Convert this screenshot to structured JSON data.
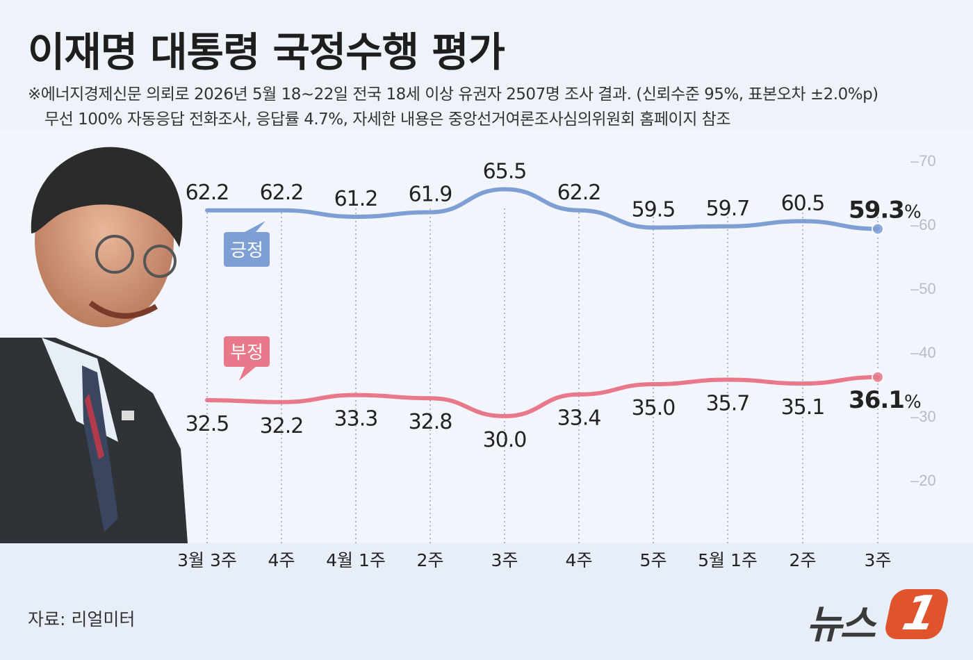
{
  "title": "이재명 대통령 국정수행 평가",
  "notes": [
    "※에너지경제신문 의뢰로 2026년 5월 18~22일 전국 18세 이상 유권자 2507명 조사 결과. (신뢰수준 95%, 표본오차 ±2.0%p)",
    "무선 100% 자동응답 전화조사, 응답률 4.7%, 자세한 내용은 중앙선거여론조사심의위원회 홈페이지 참조"
  ],
  "source": "자료: 리얼미터",
  "logo_text": "뉴스",
  "logo_badge": "1",
  "chart_data": {
    "type": "line",
    "categories": [
      "3월 3주",
      "4주",
      "4월 1주",
      "2주",
      "3주",
      "4주",
      "5주",
      "5월 1주",
      "2주",
      "3주"
    ],
    "series": [
      {
        "name": "긍정",
        "color": "#7d9fd4",
        "values": [
          62.2,
          62.2,
          61.2,
          61.9,
          65.5,
          62.2,
          59.5,
          59.7,
          60.5,
          59.3
        ],
        "labels": [
          "62.2",
          "62.2",
          "61.2",
          "61.9",
          "65.5",
          "62.2",
          "59.5",
          "59.7",
          "60.5",
          "59.3"
        ]
      },
      {
        "name": "부정",
        "color": "#e8788a",
        "values": [
          32.5,
          32.2,
          33.3,
          32.8,
          30.0,
          33.4,
          35.0,
          35.7,
          35.1,
          36.1
        ],
        "labels": [
          "32.5",
          "32.2",
          "33.3",
          "32.8",
          "30.0",
          "33.4",
          "35.0",
          "35.7",
          "35.1",
          "36.1"
        ]
      }
    ],
    "last_suffix": "%",
    "yticks": [
      "70",
      "60",
      "50",
      "40",
      "30",
      "20"
    ],
    "ylim": [
      15,
      72
    ],
    "grid": "vertical dotted"
  },
  "colors": {
    "positive": "#7d9fd4",
    "negative": "#e8788a",
    "background": "#eef3fa"
  }
}
